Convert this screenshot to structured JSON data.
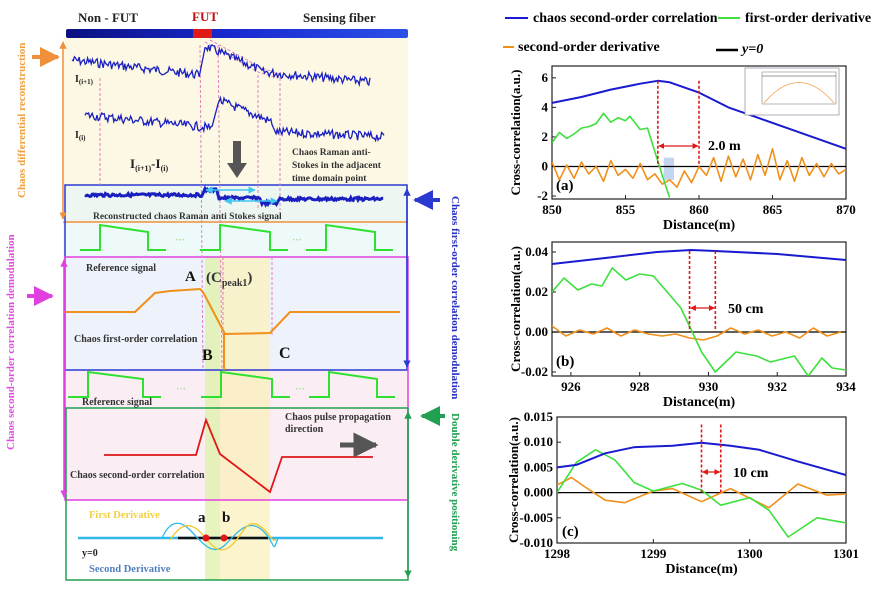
{
  "diagram": {
    "fiber": {
      "non_fut": "Non - FUT",
      "fut": "FUT",
      "sensing": "Sensing fiber"
    },
    "side_labels": {
      "differential": "Chaos differential reconstruction",
      "first_order": "Chaos first-order correlation demodulation",
      "second_order": "Chaos second-order correlation demodulation",
      "double_derivative": "Double derivative positioning"
    },
    "trace_labels": {
      "i_plus_1": {
        "main": "I",
        "sub": "(i+1)"
      },
      "i": {
        "main": "I",
        "sub": "(i)"
      },
      "diff": {
        "a": "I",
        "a_sub": "(i+1)",
        "mid": "-I",
        "b_sub": "(i)"
      }
    },
    "raman_note": [
      "Chaos Raman anti-",
      "Stokes in the adjacent",
      "time domain point"
    ],
    "reconstructed": "Reconstructed chaos Raman anti Stokes signal",
    "reference_signal": "Reference signal",
    "ellipsis": "···",
    "point_a": "A",
    "cpeak": {
      "open": "(C",
      "sub": "peak1",
      "close": ")"
    },
    "first_order_corr": "Chaos first-order correlation",
    "point_b": "B",
    "point_c": "C",
    "propagation": [
      "Chaos pulse propagation",
      "direction"
    ],
    "second_order_corr": "Chaos second-order correlation",
    "first_derivative": "First Derivative",
    "second_derivative": "Second Derivative",
    "zero_a": "a",
    "zero_b": "b",
    "y0": "y=0"
  },
  "legend": [
    {
      "label": "chaos second-order correlation",
      "color": "#1a1ad0"
    },
    {
      "label": "first-order derivative",
      "color": "#3ee03e"
    },
    {
      "label": "second-order derivative",
      "color": "#f0901a"
    },
    {
      "label": "y=0",
      "color": "#000000"
    }
  ],
  "chart_data": [
    {
      "type": "line",
      "panel": "(a)",
      "xlabel": "Distance(m)",
      "ylabel": "Cross-correlation(a.u.)",
      "xlim": [
        850,
        870
      ],
      "ylim": [
        -2.2,
        6.8
      ],
      "xticks": [
        850,
        855,
        860,
        865,
        870
      ],
      "xtick_labels": [
        "850",
        "855",
        "860",
        "865",
        "870"
      ],
      "yticks": [
        -2,
        0,
        2,
        4,
        6
      ],
      "ytick_labels": [
        "-2",
        "0",
        "2",
        "4",
        "6"
      ],
      "markers": [
        857.2,
        860.0
      ],
      "annotation": "2.0  m",
      "series": [
        {
          "name": "chaos second-order correlation",
          "color": "#1a1ad0",
          "x": [
            850,
            852,
            854,
            856,
            857.2,
            858,
            860,
            862,
            864,
            866,
            868,
            870
          ],
          "y": [
            4.3,
            4.7,
            5.2,
            5.6,
            5.8,
            5.7,
            5.0,
            4.0,
            3.3,
            2.6,
            1.9,
            1.2
          ]
        },
        {
          "name": "first-order derivative",
          "color": "#3ee03e",
          "x": [
            850,
            850.5,
            851,
            851.5,
            852,
            852.5,
            853,
            853.5,
            854,
            854.5,
            855,
            855.3,
            856,
            856.5,
            857,
            857.5,
            858
          ],
          "y": [
            1.6,
            2.3,
            1.9,
            2.2,
            2.6,
            2.7,
            2.9,
            3.6,
            3.0,
            3.3,
            3.1,
            3.4,
            2.5,
            2.6,
            1.0,
            -0.6,
            -2.1
          ]
        },
        {
          "name": "second-order derivative",
          "color": "#f0901a",
          "x_start": 850,
          "x_step": 0.5,
          "y": [
            0.3,
            -0.9,
            0.1,
            -0.8,
            0.3,
            -0.5,
            0.0,
            -1.0,
            0.4,
            -0.6,
            -0.2,
            -0.8,
            0.2,
            -0.9,
            -0.5,
            -1.2,
            -0.9,
            -1.4,
            -0.3,
            -1.1,
            0.0,
            -0.6,
            0.6,
            -1.0,
            0.7,
            -0.7,
            0.5,
            -0.9,
            0.8,
            -0.6,
            1.2,
            -0.9,
            0.4,
            -1.0,
            0.6,
            -0.6,
            0.2,
            -0.7,
            0.2,
            -0.5,
            -0.2
          ]
        }
      ]
    },
    {
      "type": "line",
      "panel": "(b)",
      "xlabel": "Distance(m)",
      "ylabel": "Cross-correlation(a.u.)",
      "xlim": [
        925.45,
        934.0
      ],
      "ylim": [
        -0.022,
        0.045
      ],
      "xticks": [
        926,
        928,
        930,
        932,
        934
      ],
      "xtick_labels": [
        "926",
        "928",
        "930",
        "932",
        "934"
      ],
      "yticks": [
        -0.02,
        0,
        0.02,
        0.04
      ],
      "ytick_labels": [
        "-0.02",
        "0.00",
        "0.02",
        "0.04"
      ],
      "markers": [
        929.45,
        930.2
      ],
      "annotation": "50 cm",
      "series": [
        {
          "name": "chaos second-order correlation",
          "color": "#1a1ad0",
          "x": [
            925.45,
            927,
            928.5,
            929.5,
            930.2,
            932,
            934
          ],
          "y": [
            0.034,
            0.037,
            0.04,
            0.041,
            0.0405,
            0.039,
            0.036
          ]
        },
        {
          "name": "first-order derivative",
          "color": "#3ee03e",
          "x": [
            925.45,
            925.8,
            926.2,
            926.6,
            926.9,
            927.2,
            927.6,
            928,
            928.4,
            928.8,
            929.2,
            929.5,
            929.8,
            930.2,
            930.8,
            931.4,
            931.8,
            932.5,
            932.9,
            933.3,
            933.6,
            934
          ],
          "y": [
            0.02,
            0.027,
            0.021,
            0.024,
            0.023,
            0.032,
            0.026,
            0.029,
            0.028,
            0.02,
            0.012,
            0.001,
            -0.01,
            -0.02,
            -0.01,
            -0.012,
            -0.015,
            -0.012,
            -0.022,
            -0.013,
            -0.018,
            -0.019
          ]
        },
        {
          "name": "second-order derivative",
          "color": "#f0901a",
          "x_start": 925.45,
          "x_step": 0.4,
          "y": [
            0.003,
            -0.002,
            0.001,
            -0.001,
            0.002,
            -0.002,
            0.001,
            -0.001,
            -0.002,
            -0.001,
            -0.003,
            -0.004,
            -0.002,
            0.002,
            -0.001,
            0.001,
            -0.002,
            0.0,
            -0.003,
            0.002,
            -0.002,
            0.0
          ]
        }
      ]
    },
    {
      "type": "line",
      "panel": "(c)",
      "xlabel": "Distance(m)",
      "ylabel": "Cross-correlation(a.u.)",
      "xlim": [
        1298,
        1301
      ],
      "ylim": [
        -0.01,
        0.015
      ],
      "xticks": [
        1298,
        1299,
        1300,
        1301
      ],
      "xtick_labels": [
        "1298",
        "1299",
        "1300",
        "1301"
      ],
      "yticks": [
        -0.01,
        -0.005,
        0,
        0.005,
        0.01,
        0.015
      ],
      "ytick_labels": [
        "-0.010",
        "-0.005",
        "0.000",
        "0.005",
        "0.010",
        "0.015"
      ],
      "markers": [
        1299.5,
        1299.7
      ],
      "annotation": "10 cm",
      "series": [
        {
          "name": "chaos second-order correlation",
          "color": "#1a1ad0",
          "x": [
            1298,
            1298.2,
            1298.5,
            1298.8,
            1299.2,
            1299.5,
            1299.8,
            1300.1,
            1300.5,
            1301
          ],
          "y": [
            0.005,
            0.0055,
            0.0078,
            0.009,
            0.0093,
            0.0099,
            0.0093,
            0.0085,
            0.0062,
            0.0035
          ]
        },
        {
          "name": "first-order derivative",
          "color": "#3ee03e",
          "x": [
            1298,
            1298.2,
            1298.4,
            1298.6,
            1298.8,
            1299,
            1299.3,
            1299.5,
            1299.7,
            1300,
            1300.2,
            1300.4,
            1300.7,
            1301
          ],
          "y": [
            0,
            0.006,
            0.0085,
            0.0065,
            0.002,
            0.0003,
            0.0018,
            0.0005,
            -0.0025,
            -0.001,
            -0.0035,
            -0.0088,
            -0.005,
            -0.006
          ]
        },
        {
          "name": "second-order derivative",
          "color": "#f0901a",
          "x": [
            1298,
            1298.15,
            1298.3,
            1298.5,
            1298.7,
            1299,
            1299.2,
            1299.5,
            1299.8,
            1300.2,
            1300.5,
            1300.8,
            1301
          ],
          "y": [
            0.0015,
            0.003,
            0.001,
            -0.0015,
            -0.002,
            0.0003,
            0.0008,
            -0.0018,
            0.0008,
            -0.003,
            0.0017,
            -0.0005,
            -0.0003
          ]
        }
      ]
    }
  ]
}
